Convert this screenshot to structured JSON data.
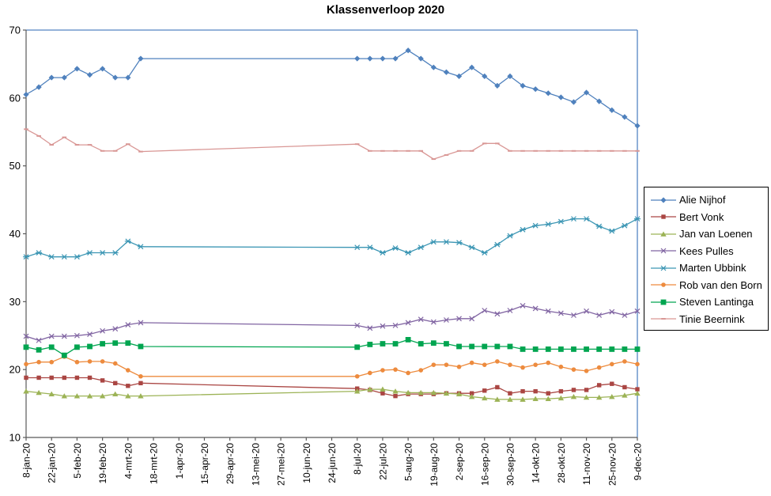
{
  "chart_data": {
    "type": "line",
    "title": "Klassenverloop 2020",
    "xlabel": "",
    "ylabel": "",
    "ylim": [
      10,
      70
    ],
    "ytick_step": 10,
    "grid": false,
    "legend_position": "right",
    "points_per_tick_label": 2,
    "x_tick_labels": [
      "8-jan-20",
      "22-jan-20",
      "5-feb-20",
      "19-feb-20",
      "4-mrt-20",
      "18-mrt-20",
      "1-apr-20",
      "15-apr-20",
      "29-apr-20",
      "13-mei-20",
      "27-mei-20",
      "10-jun-20",
      "24-jun-20",
      "8-jul-20",
      "22-jul-20",
      "5-aug-20",
      "19-aug-20",
      "2-sep-20",
      "16-sep-20",
      "30-sep-20",
      "14-okt-20",
      "28-okt-20",
      "11-nov-20",
      "25-nov-20",
      "9-dec-20"
    ],
    "series": [
      {
        "name": "Alie Nijhof",
        "color": "#4F81BD",
        "marker": "diamond",
        "values": [
          60.5,
          61.6,
          63,
          63,
          64.3,
          63.4,
          64.3,
          63,
          63,
          65.8,
          null,
          null,
          null,
          null,
          null,
          null,
          null,
          null,
          null,
          null,
          null,
          null,
          null,
          null,
          null,
          null,
          65.8,
          65.8,
          65.8,
          65.8,
          67,
          65.8,
          64.5,
          63.8,
          63.2,
          64.5,
          63.2,
          61.8,
          63.2,
          61.8,
          61.3,
          60.7,
          60.1,
          59.4,
          60.8,
          59.5,
          58.2,
          57.2,
          55.9
        ]
      },
      {
        "name": "Bert Vonk",
        "color": "#AA4643",
        "marker": "square",
        "values": [
          18.8,
          18.8,
          18.8,
          18.8,
          18.8,
          18.8,
          18.4,
          18.0,
          17.6,
          18.0,
          null,
          null,
          null,
          null,
          null,
          null,
          null,
          null,
          null,
          null,
          null,
          null,
          null,
          null,
          null,
          null,
          17.2,
          17.0,
          16.5,
          16.1,
          16.4,
          16.4,
          16.4,
          16.5,
          16.5,
          16.5,
          16.9,
          17.4,
          16.5,
          16.8,
          16.8,
          16.5,
          16.8,
          17.0,
          17.0,
          17.7,
          17.9,
          17.4,
          17.1
        ]
      },
      {
        "name": "Jan van Loenen",
        "color": "#9CB356",
        "marker": "triangle",
        "values": [
          16.8,
          16.6,
          16.4,
          16.1,
          16.1,
          16.1,
          16.1,
          16.4,
          16.1,
          16.1,
          null,
          null,
          null,
          null,
          null,
          null,
          null,
          null,
          null,
          null,
          null,
          null,
          null,
          null,
          null,
          null,
          16.8,
          17.1,
          17.1,
          16.8,
          16.6,
          16.6,
          16.6,
          16.5,
          16.4,
          16.0,
          15.8,
          15.6,
          15.6,
          15.6,
          15.7,
          15.7,
          15.8,
          16.0,
          15.9,
          15.9,
          16.0,
          16.2,
          16.5
        ]
      },
      {
        "name": "Kees Pulles",
        "color": "#8064A2",
        "marker": "x",
        "values": [
          24.9,
          24.3,
          24.9,
          24.9,
          25.0,
          25.2,
          25.7,
          26.0,
          26.6,
          26.9,
          null,
          null,
          null,
          null,
          null,
          null,
          null,
          null,
          null,
          null,
          null,
          null,
          null,
          null,
          null,
          null,
          26.5,
          26.1,
          26.4,
          26.5,
          26.9,
          27.4,
          27.0,
          27.3,
          27.5,
          27.5,
          28.7,
          28.2,
          28.7,
          29.4,
          29.0,
          28.6,
          28.3,
          28.0,
          28.6,
          28.0,
          28.5,
          28.0,
          28.6
        ]
      },
      {
        "name": "Marten Ubbink",
        "color": "#3C96B4",
        "marker": "star",
        "values": [
          36.6,
          37.2,
          36.6,
          36.6,
          36.6,
          37.2,
          37.2,
          37.2,
          38.9,
          38.1,
          null,
          null,
          null,
          null,
          null,
          null,
          null,
          null,
          null,
          null,
          null,
          null,
          null,
          null,
          null,
          null,
          38.0,
          38.0,
          37.2,
          37.9,
          37.2,
          38.0,
          38.8,
          38.8,
          38.7,
          38.0,
          37.2,
          38.4,
          39.7,
          40.6,
          41.2,
          41.4,
          41.8,
          42.2,
          42.2,
          41.1,
          40.4,
          41.2,
          42.2
        ]
      },
      {
        "name": "Rob van den Born",
        "color": "#ED8B3E",
        "marker": "circle",
        "values": [
          20.8,
          21.1,
          21.1,
          21.9,
          21.1,
          21.2,
          21.2,
          20.9,
          19.9,
          19.0,
          null,
          null,
          null,
          null,
          null,
          null,
          null,
          null,
          null,
          null,
          null,
          null,
          null,
          null,
          null,
          null,
          19.0,
          19.5,
          19.9,
          20.0,
          19.5,
          19.9,
          20.7,
          20.7,
          20.4,
          21.0,
          20.7,
          21.2,
          20.7,
          20.3,
          20.7,
          21.0,
          20.4,
          20.0,
          19.8,
          20.3,
          20.8,
          21.2,
          20.8
        ]
      },
      {
        "name": "Steven Lantinga",
        "color": "#00A550",
        "marker": "square-lg",
        "values": [
          23.3,
          22.9,
          23.3,
          22.1,
          23.3,
          23.4,
          23.8,
          23.9,
          23.9,
          23.4,
          null,
          null,
          null,
          null,
          null,
          null,
          null,
          null,
          null,
          null,
          null,
          null,
          null,
          null,
          null,
          null,
          23.3,
          23.7,
          23.8,
          23.8,
          24.4,
          23.8,
          23.9,
          23.8,
          23.4,
          23.4,
          23.4,
          23.4,
          23.4,
          23.0,
          23.0,
          23.0,
          23.0,
          23.0,
          23.0,
          23.0,
          23.0,
          23.0,
          23.0
        ]
      },
      {
        "name": "Tinie Beernink",
        "color": "#D99795",
        "marker": "dash",
        "values": [
          55.4,
          54.4,
          53.1,
          54.2,
          53.1,
          53.1,
          52.2,
          52.2,
          53.2,
          52.1,
          null,
          null,
          null,
          null,
          null,
          null,
          null,
          null,
          null,
          null,
          null,
          null,
          null,
          null,
          null,
          null,
          53.2,
          52.2,
          52.2,
          52.2,
          52.2,
          52.2,
          51.0,
          51.6,
          52.2,
          52.2,
          53.3,
          53.3,
          52.2,
          52.2,
          52.2,
          52.2,
          52.2,
          52.2,
          52.2,
          52.2,
          52.2,
          52.2,
          52.2
        ]
      }
    ],
    "colors": {
      "plot_border": "#5585C2",
      "axis": "#595959",
      "text": "#000000",
      "background": "#FFFFFF"
    }
  }
}
